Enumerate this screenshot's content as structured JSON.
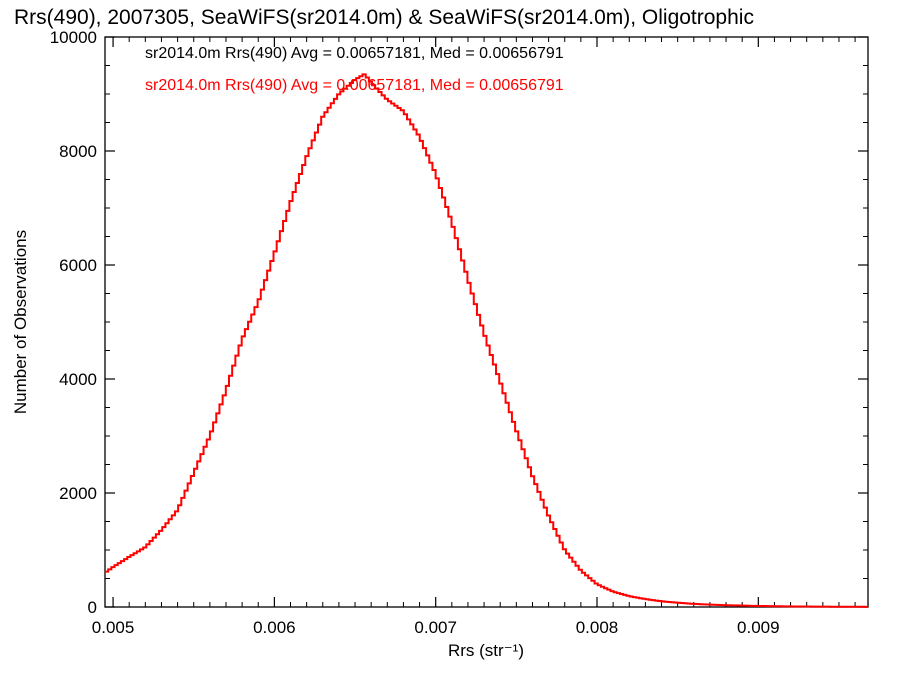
{
  "chart_data": {
    "type": "line",
    "title": "Rrs(490), 2007305, SeaWiFS(sr2014.0m) & SeaWiFS(sr2014.0m), Oligotrophic",
    "xlabel": "Rrs (str⁻¹)",
    "ylabel": "Number of Observations",
    "xlim": [
      0.00495,
      0.00968
    ],
    "ylim": [
      0,
      10000
    ],
    "xticks": [
      0.005,
      0.006,
      0.007,
      0.008,
      0.009
    ],
    "xtick_labels": [
      "0.005",
      "0.006",
      "0.007",
      "0.008",
      "0.009"
    ],
    "yticks": [
      0,
      2000,
      4000,
      6000,
      8000,
      10000
    ],
    "ytick_labels": [
      "0",
      "2000",
      "4000",
      "6000",
      "8000",
      "10000"
    ],
    "annotations": [
      {
        "text": "sr2014.0m Rrs(490) Avg = 0.00657181, Med = 0.00656791",
        "color": "#000000"
      },
      {
        "text": "sr2014.0m Rrs(490) Avg = 0.00657181, Med = 0.00656791",
        "color": "#ff0000"
      }
    ],
    "series": [
      {
        "color": "#ff0000",
        "x": [
          0.00495,
          0.005,
          0.0051,
          0.0052,
          0.0053,
          0.0054,
          0.0055,
          0.0056,
          0.0057,
          0.0058,
          0.0059,
          0.006,
          0.0061,
          0.0062,
          0.0063,
          0.0064,
          0.0065,
          0.00656,
          0.0066,
          0.0067,
          0.0068,
          0.0069,
          0.007,
          0.0071,
          0.0072,
          0.0073,
          0.0074,
          0.0075,
          0.0076,
          0.0077,
          0.0078,
          0.0079,
          0.008,
          0.0081,
          0.0082,
          0.0083,
          0.0084,
          0.0085,
          0.0086,
          0.0087,
          0.0088,
          0.0089,
          0.009,
          0.0091,
          0.0092,
          0.0093,
          0.0094,
          0.0095,
          0.0096,
          0.00968
        ],
        "y": [
          600,
          700,
          880,
          1050,
          1350,
          1700,
          2350,
          3000,
          3800,
          4700,
          5350,
          6200,
          7100,
          7900,
          8600,
          9000,
          9250,
          9350,
          9200,
          8900,
          8700,
          8250,
          7600,
          6750,
          5750,
          4800,
          3950,
          3100,
          2300,
          1600,
          1000,
          640,
          400,
          270,
          190,
          140,
          100,
          75,
          55,
          42,
          32,
          25,
          18,
          14,
          10,
          8,
          6,
          5,
          4,
          3
        ]
      }
    ]
  }
}
